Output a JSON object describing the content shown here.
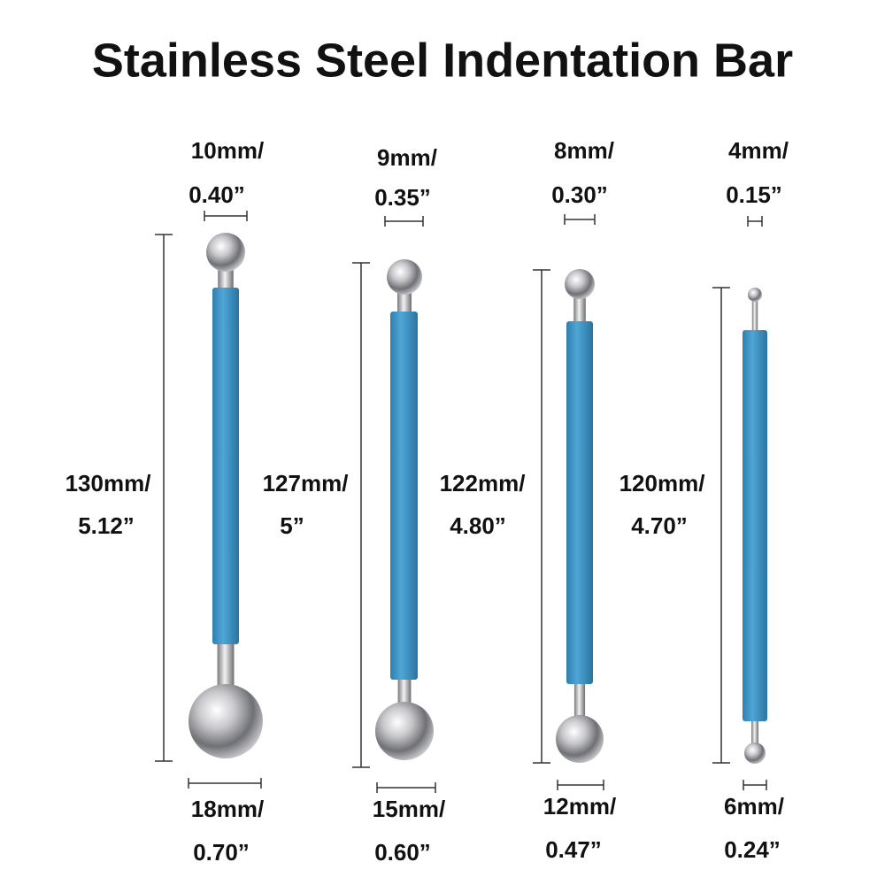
{
  "title": "Stainless Steel Indentation Bar",
  "tools": [
    {
      "top": [
        "10mm/",
        "0.40”"
      ],
      "length": [
        "130mm/",
        "5.12”"
      ],
      "bottom": [
        "18mm/",
        "0.70”"
      ]
    },
    {
      "top": [
        "9mm/",
        "0.35”"
      ],
      "length": [
        "127mm/",
        "5”"
      ],
      "bottom": [
        "15mm/",
        "0.60”"
      ]
    },
    {
      "top": [
        "8mm/",
        "0.30”"
      ],
      "length": [
        "122mm/",
        "4.80”"
      ],
      "bottom": [
        "12mm/",
        "0.47”"
      ]
    },
    {
      "top": [
        "4mm/",
        "0.15”"
      ],
      "length": [
        "120mm/",
        "4.70”"
      ],
      "bottom": [
        "6mm/",
        "0.24”"
      ]
    }
  ]
}
